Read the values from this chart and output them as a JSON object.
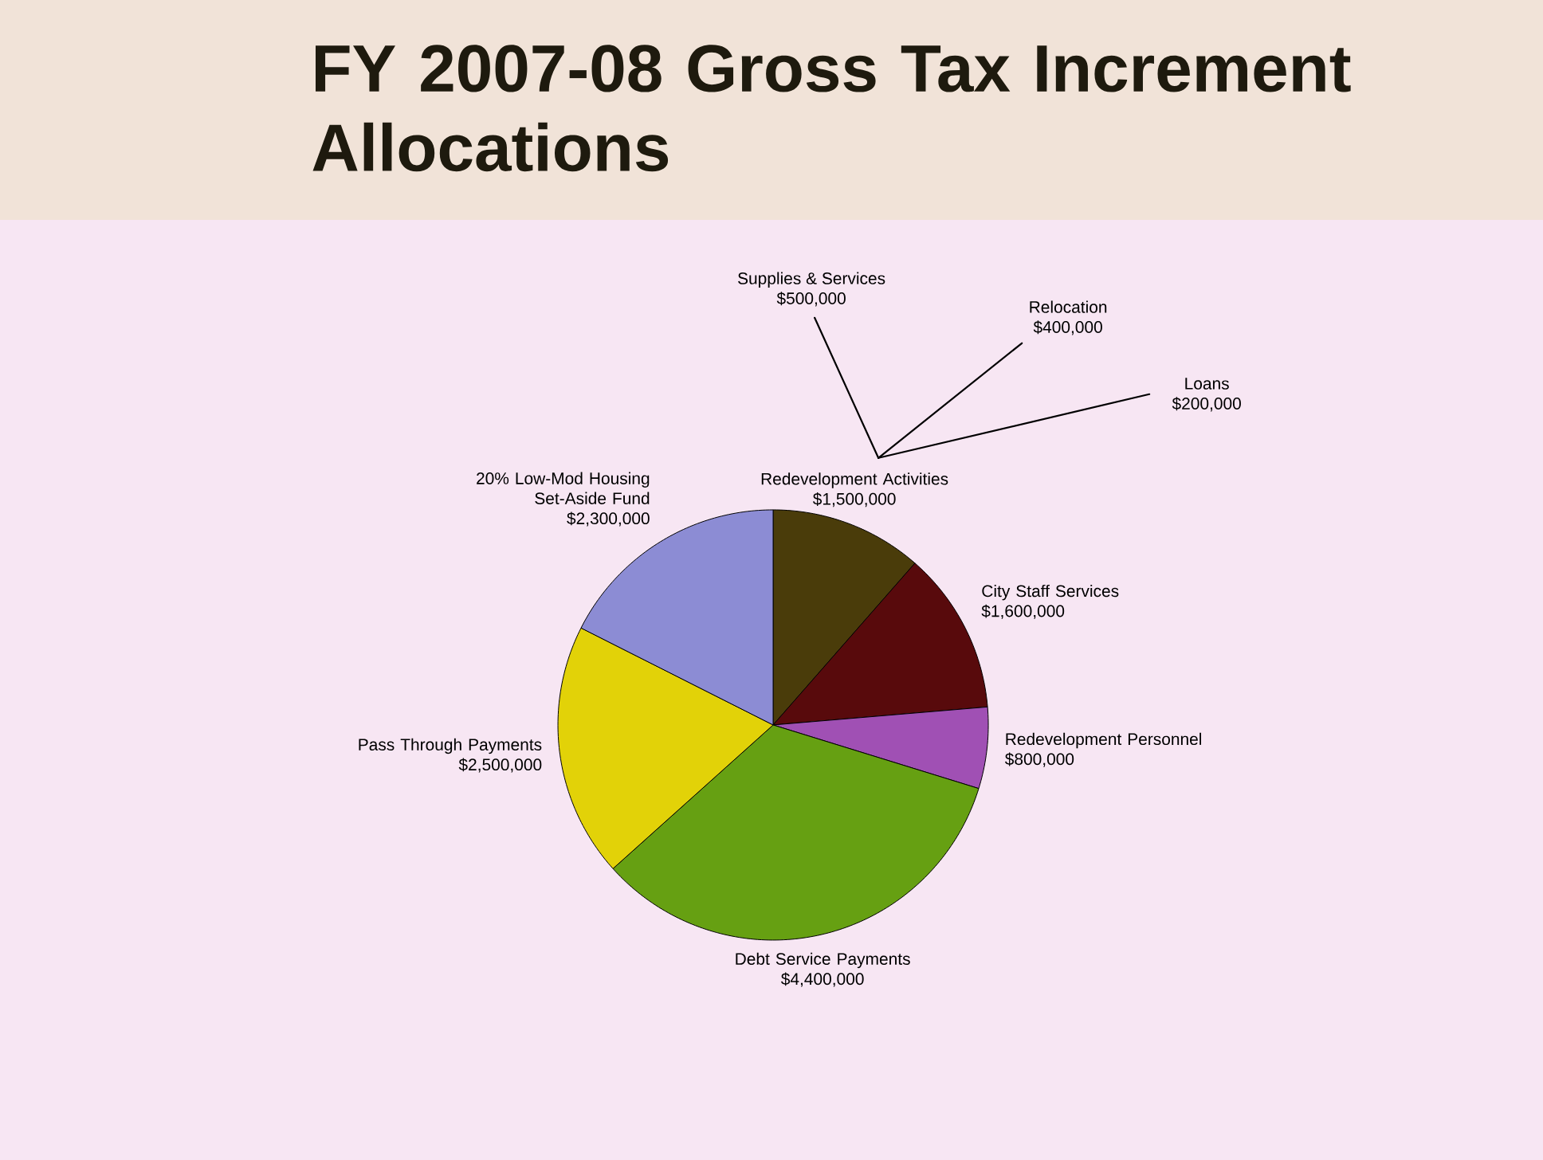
{
  "chart_data": {
    "type": "pie",
    "title": "FY 2007-08 Gross Tax Increment Allocations",
    "categories": [
      "Redevelopment Activities",
      "City Staff Services",
      "Redevelopment Personnel",
      "Debt Service Payments",
      "Pass Through Payments",
      "20% Low-Mod Housing Set-Aside Fund"
    ],
    "values": [
      1500000,
      1600000,
      800000,
      4400000,
      2500000,
      2300000
    ],
    "value_labels": [
      "$1,500,000",
      "$1,600,000",
      "$800,000",
      "$4,400,000",
      "$2,500,000",
      "$2,300,000"
    ],
    "colors": [
      "#4a3c0a",
      "#580a0c",
      "#a050b4",
      "#66a012",
      "#e2d208",
      "#8c8cd4"
    ],
    "annotations": [
      "Supplies & Services",
      "$500,000",
      "Relocation",
      "$400,000",
      "Loans",
      "$200,000"
    ]
  }
}
